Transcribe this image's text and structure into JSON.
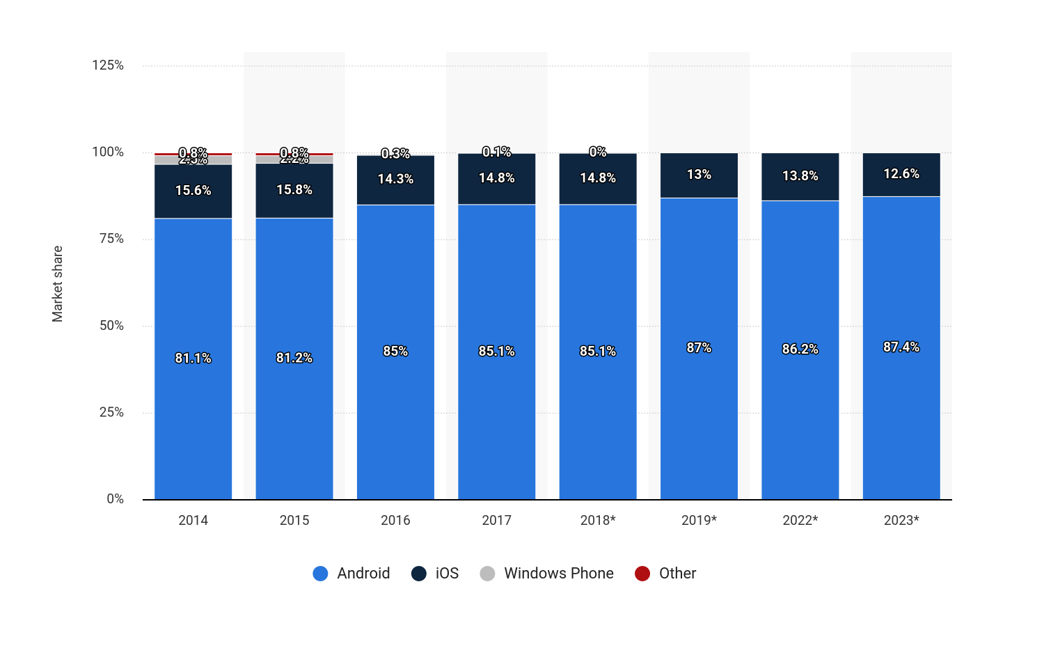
{
  "chart_data": {
    "type": "stacked-bar",
    "y_label": "Market share",
    "categories": [
      "2014",
      "2015",
      "2016",
      "2017",
      "2018*",
      "2019*",
      "2022*",
      "2023*"
    ],
    "series": [
      {
        "name": "Android",
        "color": "#2876dd",
        "values": [
          81.1,
          81.2,
          85,
          85.1,
          85.1,
          87,
          86.2,
          87.4
        ],
        "value_labels": [
          "81.1%",
          "81.2%",
          "85%",
          "85.1%",
          "85.1%",
          "87%",
          "86.2%",
          "87.4%"
        ]
      },
      {
        "name": "iOS",
        "color": "#0f2640",
        "values": [
          15.6,
          15.8,
          14.3,
          14.8,
          14.8,
          13,
          13.8,
          12.6
        ],
        "value_labels": [
          "15.6%",
          "15.8%",
          "14.3%",
          "14.8%",
          "14.8%",
          "13%",
          "13.8%",
          "12.6%"
        ]
      },
      {
        "name": "Windows Phone",
        "color": "#bdbdbd",
        "values": [
          2.5,
          2.2,
          0.3,
          0.1,
          0,
          null,
          null,
          null
        ],
        "value_labels": [
          "2.5%",
          "2.2%",
          "0.3%",
          "0.1%",
          "0%",
          null,
          null,
          null
        ]
      },
      {
        "name": "Other",
        "color": "#b00f12",
        "values": [
          0.8,
          0.8,
          null,
          null,
          null,
          null,
          null,
          null
        ],
        "value_labels": [
          "0.8%",
          "0.8%",
          null,
          null,
          null,
          null,
          null,
          null
        ]
      }
    ],
    "ylim": [
      0,
      125
    ],
    "yticks": [
      {
        "value": 0,
        "label": "0%"
      },
      {
        "value": 25,
        "label": "25%"
      },
      {
        "value": 50,
        "label": "50%"
      },
      {
        "value": 75,
        "label": "75%"
      },
      {
        "value": 100,
        "label": "100%"
      },
      {
        "value": 125,
        "label": "125%"
      }
    ],
    "grid": true
  }
}
